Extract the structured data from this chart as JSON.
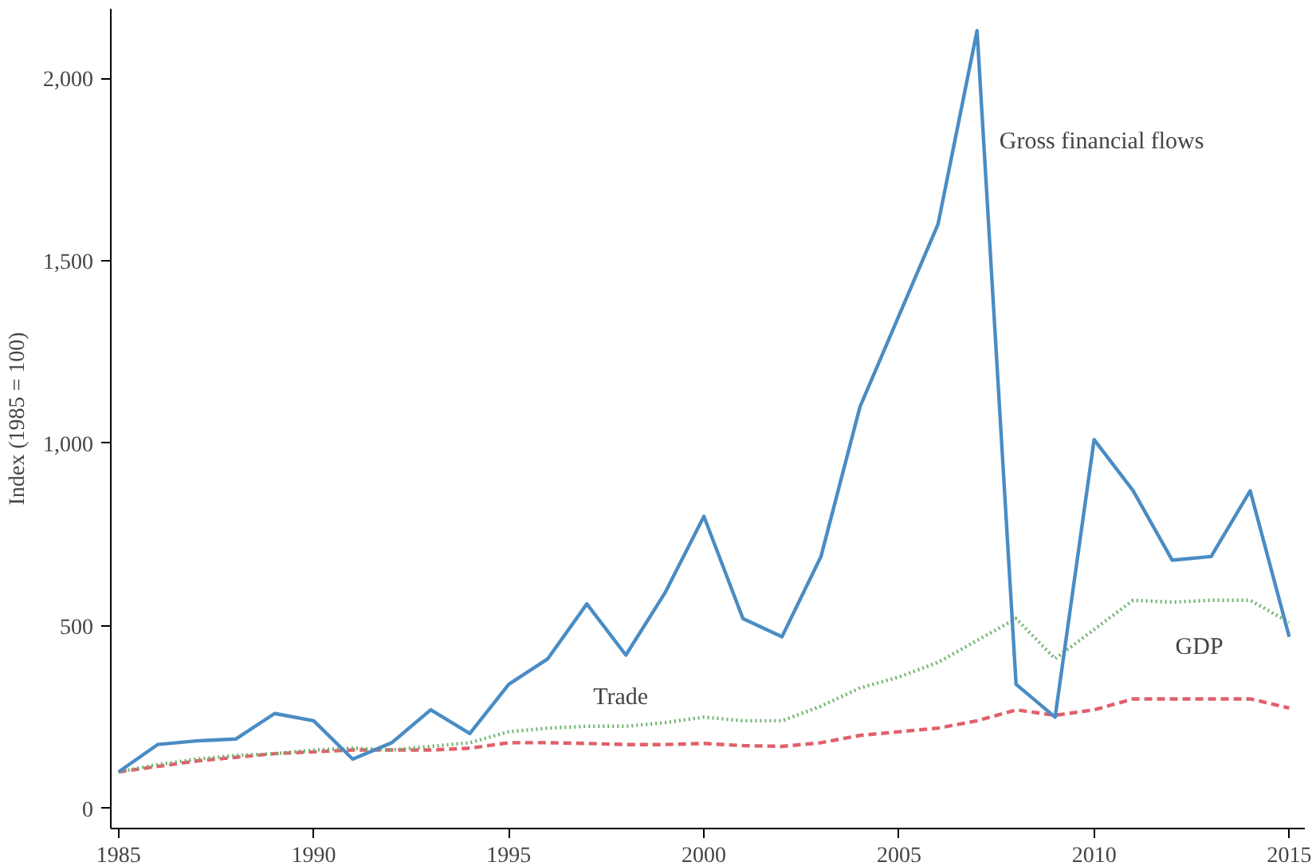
{
  "chart_data": {
    "type": "line",
    "ylabel": "Index (1985 = 100)",
    "x": [
      1985,
      1986,
      1987,
      1988,
      1989,
      1990,
      1991,
      1992,
      1993,
      1994,
      1995,
      1996,
      1997,
      1998,
      1999,
      2000,
      2001,
      2002,
      2003,
      2004,
      2005,
      2006,
      2007,
      2008,
      2009,
      2010,
      2011,
      2012,
      2013,
      2014,
      2015
    ],
    "series": [
      {
        "name": "Gross financial flows",
        "color": "#4a8cc4",
        "line_style": "solid",
        "values": [
          100,
          175,
          185,
          190,
          260,
          240,
          135,
          180,
          270,
          205,
          340,
          410,
          560,
          420,
          590,
          800,
          520,
          470,
          690,
          1100,
          1350,
          1600,
          2130,
          340,
          250,
          1010,
          870,
          680,
          690,
          870,
          470
        ]
      },
      {
        "name": "Trade",
        "color": "#6db36d",
        "line_style": "dotted",
        "values": [
          100,
          120,
          135,
          145,
          150,
          160,
          165,
          160,
          170,
          180,
          210,
          220,
          225,
          225,
          235,
          250,
          240,
          240,
          280,
          330,
          360,
          400,
          460,
          520,
          410,
          490,
          570,
          565,
          570,
          570,
          510
        ]
      },
      {
        "name": "GDP",
        "color": "#e0606a",
        "line_style": "dashed",
        "values": [
          100,
          115,
          130,
          140,
          150,
          155,
          160,
          160,
          160,
          165,
          180,
          180,
          178,
          175,
          175,
          178,
          172,
          170,
          180,
          200,
          210,
          220,
          240,
          270,
          255,
          270,
          300,
          300,
          300,
          300,
          275
        ]
      }
    ],
    "xlim": [
      1984.8,
      2015.4
    ],
    "ylim": [
      -55,
      2190
    ],
    "xticks": [
      1985,
      1990,
      1995,
      2000,
      2005,
      2010,
      2015
    ],
    "yticks": [
      0,
      500,
      {
        "value": 1000,
        "label": "1,000"
      },
      {
        "value": 1500,
        "label": "1,500"
      },
      {
        "value": 2000,
        "label": "2,000"
      }
    ],
    "grid": false
  }
}
